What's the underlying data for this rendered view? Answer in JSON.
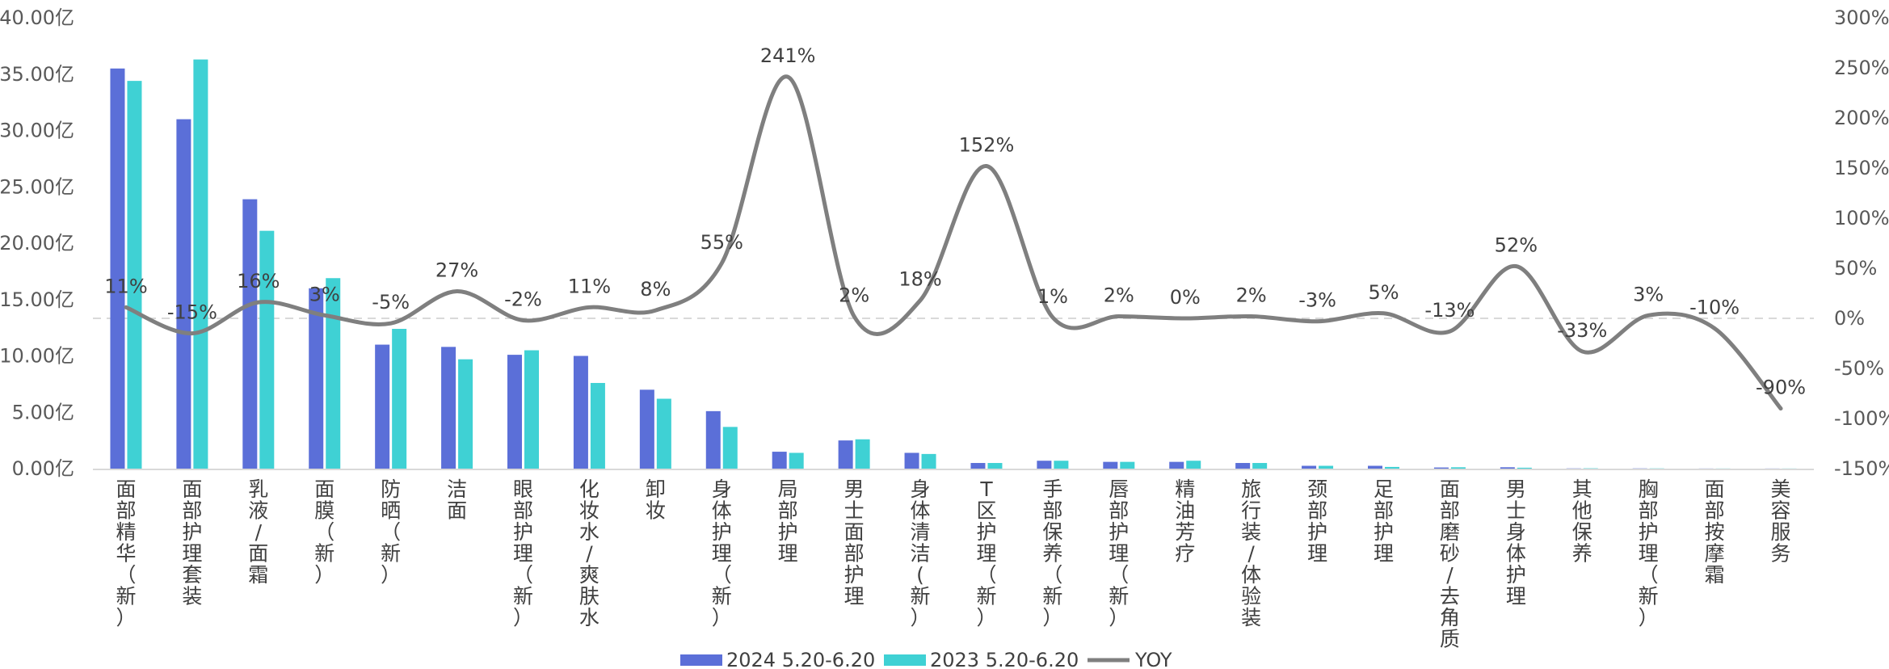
{
  "chart_data": {
    "type": "bar",
    "title": "",
    "categories": [
      "面部精华（新）",
      "面部护理套装",
      "乳液/面霜",
      "面膜（新）",
      "防晒（新）",
      "洁面",
      "眼部护理（新）",
      "化妆水/爽肤水",
      "卸妆",
      "身体护理（新）",
      "局部护理",
      "男士面部护理",
      "身体清洁(新）",
      "T区护理（新）",
      "手部保养（新）",
      "唇部护理（新）",
      "精油芳疗",
      "旅行装/体验装",
      "颈部护理",
      "足部护理",
      "面部磨砂/去角质",
      "男士身体护理",
      "其他保养",
      "胸部护理（新）",
      "面部按摩霜",
      "美容服务"
    ],
    "series": [
      {
        "name": "2024 5.20-6.20",
        "type": "bar",
        "axis": "left",
        "color": "#5B6FD8",
        "values": [
          35.5,
          31.0,
          23.9,
          16.0,
          11.0,
          10.8,
          10.1,
          10.0,
          7.0,
          5.1,
          1.5,
          2.5,
          1.4,
          0.5,
          0.7,
          0.6,
          0.6,
          0.5,
          0.25,
          0.25,
          0.1,
          0.12,
          0.02,
          0.02,
          0.01,
          0.01
        ]
      },
      {
        "name": "2023 5.20-6.20",
        "type": "bar",
        "axis": "left",
        "color": "#3FD1D4",
        "values": [
          34.4,
          36.3,
          21.1,
          16.9,
          12.4,
          9.7,
          10.5,
          7.6,
          6.2,
          3.7,
          1.4,
          2.6,
          1.3,
          0.5,
          0.7,
          0.6,
          0.7,
          0.5,
          0.25,
          0.15,
          0.12,
          0.08,
          0.03,
          0.02,
          0.01,
          0.01
        ]
      },
      {
        "name": "YOY",
        "type": "line",
        "axis": "right",
        "color": "#7F7F7F",
        "values": [
          11,
          -15,
          16,
          3,
          -5,
          27,
          -2,
          11,
          8,
          55,
          241,
          2,
          18,
          152,
          1,
          2,
          0,
          2,
          -3,
          5,
          -13,
          52,
          -33,
          3,
          -10,
          -90
        ],
        "labels": [
          "11%",
          "-15%",
          "16%",
          "3%",
          "-5%",
          "27%",
          "-2%",
          "11%",
          "8%",
          "55%",
          "241%",
          "2%",
          "18%",
          "152%",
          "1%",
          "2%",
          "0%",
          "2%",
          "-3%",
          "5%",
          "-13%",
          "52%",
          "-33%",
          "3%",
          "-10%",
          "-90%"
        ]
      }
    ],
    "y_left": {
      "min": 0,
      "max": 40,
      "ticks": [
        0,
        5,
        10,
        15,
        20,
        25,
        30,
        35,
        40
      ],
      "tick_labels": [
        "0.00亿",
        "5.00亿",
        "10.00亿",
        "15.00亿",
        "20.00亿",
        "25.00亿",
        "30.00亿",
        "35.00亿",
        "40.00亿"
      ]
    },
    "y_right": {
      "min": -150,
      "max": 300,
      "ticks": [
        -150,
        -100,
        -50,
        0,
        50,
        100,
        150,
        200,
        250,
        300
      ],
      "tick_labels": [
        "-150%",
        "-100%",
        "-50%",
        "0%",
        "50%",
        "100%",
        "150%",
        "200%",
        "250%",
        "300%"
      ]
    },
    "zero_line": "dashed",
    "grid": false,
    "legend": "bottom-center",
    "legend_labels": [
      "2024 5.20-6.20",
      "2023 5.20-6.20",
      "YOY"
    ]
  }
}
